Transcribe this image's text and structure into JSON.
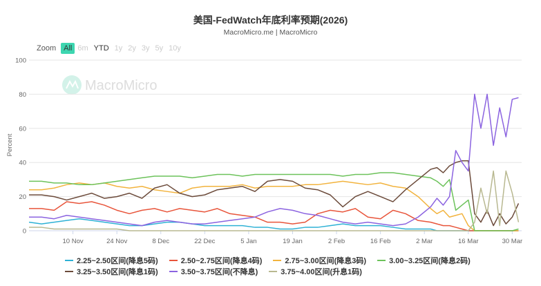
{
  "title": "美国-FedWatch年底利率预期(2026)",
  "subtitle": "MacroMicro.me | MacroMicro",
  "watermark": "MacroMicro",
  "zoom": {
    "label": "Zoom",
    "options": [
      {
        "label": "All",
        "state": "active"
      },
      {
        "label": "6m",
        "state": "disabled"
      },
      {
        "label": "YTD",
        "state": "enabled"
      },
      {
        "label": "1y",
        "state": "disabled"
      },
      {
        "label": "2y",
        "state": "disabled"
      },
      {
        "label": "3y",
        "state": "disabled"
      },
      {
        "label": "5y",
        "state": "disabled"
      },
      {
        "label": "10y",
        "state": "disabled"
      }
    ]
  },
  "chart_data": {
    "type": "line",
    "title": "美国-FedWatch年底利率预期(2026)",
    "ylabel": "Percent",
    "xlabel": "",
    "ylim": [
      0,
      100
    ],
    "yticks": [
      0,
      20,
      40,
      60,
      80,
      100
    ],
    "x_unit": "days since 27 Oct",
    "xlim": [
      0,
      157
    ],
    "xticks": [
      {
        "day": 14,
        "label": "10 Nov"
      },
      {
        "day": 28,
        "label": "24 Nov"
      },
      {
        "day": 42,
        "label": "8 Dec"
      },
      {
        "day": 56,
        "label": "22 Dec"
      },
      {
        "day": 70,
        "label": "5 Jan"
      },
      {
        "day": 84,
        "label": "19 Jan"
      },
      {
        "day": 98,
        "label": "2 Feb"
      },
      {
        "day": 112,
        "label": "16 Feb"
      },
      {
        "day": 126,
        "label": "2 Mar"
      },
      {
        "day": 140,
        "label": "16 Mar"
      },
      {
        "day": 154,
        "label": "30 Mar"
      }
    ],
    "grid": true,
    "legend": "bottom",
    "x": [
      0,
      4,
      8,
      12,
      16,
      20,
      24,
      28,
      32,
      36,
      40,
      44,
      48,
      52,
      56,
      60,
      64,
      68,
      72,
      76,
      80,
      84,
      88,
      92,
      96,
      100,
      104,
      108,
      112,
      116,
      120,
      124,
      128,
      130,
      132,
      134,
      136,
      138,
      140,
      142,
      144,
      146,
      148,
      150,
      152,
      154,
      156
    ],
    "series": [
      {
        "name": "2.25~2.50区间(降息5码)",
        "color": "#2db1d5",
        "values": [
          5,
          4,
          5,
          6,
          7,
          6,
          5,
          4,
          3,
          3,
          4,
          5,
          5,
          4,
          3,
          3,
          3,
          3,
          2,
          2,
          1,
          1,
          2,
          2,
          3,
          4,
          3,
          3,
          3,
          2,
          1,
          1,
          1,
          0,
          0,
          0,
          0,
          0,
          0,
          0,
          0,
          0,
          0,
          0,
          0,
          0,
          0
        ]
      },
      {
        "name": "2.50~2.75区间(降息4码)",
        "color": "#e8543a",
        "values": [
          13,
          13,
          12,
          17,
          16,
          17,
          15,
          12,
          10,
          12,
          13,
          11,
          13,
          12,
          11,
          13,
          10,
          9,
          8,
          5,
          5,
          4,
          5,
          10,
          12,
          11,
          13,
          8,
          7,
          12,
          10,
          6,
          5,
          4,
          3,
          3,
          2,
          1,
          0,
          0,
          0,
          0,
          0,
          0,
          0,
          0,
          0
        ]
      },
      {
        "name": "2.75~3.00区间(降息3码)",
        "color": "#f2b33d",
        "values": [
          24,
          24,
          25,
          27,
          28,
          27,
          28,
          26,
          25,
          26,
          24,
          23,
          22,
          25,
          26,
          26,
          26,
          27,
          25,
          26,
          26,
          26,
          27,
          27,
          28,
          29,
          28,
          27,
          28,
          26,
          25,
          20,
          13,
          10,
          12,
          8,
          9,
          10,
          3,
          0,
          0,
          0,
          0,
          0,
          0,
          0,
          0
        ]
      },
      {
        "name": "3.00~3.25区间(降息2码)",
        "color": "#6cc25a",
        "values": [
          29,
          29,
          28,
          28,
          27,
          27,
          28,
          29,
          30,
          31,
          32,
          32,
          32,
          31,
          32,
          33,
          33,
          32,
          33,
          33,
          33,
          33,
          33,
          33,
          33,
          32,
          33,
          33,
          34,
          34,
          33,
          32,
          31,
          29,
          26,
          30,
          12,
          15,
          18,
          0,
          0,
          0,
          0,
          0,
          0,
          0,
          1
        ]
      },
      {
        "name": "3.25~3.50区间(降息1码)",
        "color": "#6b4a3a",
        "values": [
          21,
          21,
          20,
          18,
          20,
          22,
          19,
          20,
          22,
          19,
          25,
          27,
          22,
          20,
          21,
          24,
          25,
          26,
          23,
          29,
          30,
          29,
          25,
          24,
          21,
          14,
          20,
          23,
          20,
          17,
          24,
          30,
          36,
          37,
          34,
          38,
          40,
          41,
          41,
          10,
          5,
          12,
          3,
          10,
          4,
          8,
          16
        ]
      },
      {
        "name": "3.50~3.75区间(不降息)",
        "color": "#8b63e0",
        "values": [
          8,
          8,
          7,
          9,
          8,
          7,
          6,
          5,
          4,
          3,
          5,
          6,
          5,
          4,
          4,
          5,
          6,
          7,
          8,
          11,
          13,
          12,
          10,
          9,
          7,
          5,
          4,
          5,
          4,
          3,
          4,
          8,
          14,
          19,
          15,
          20,
          47,
          40,
          35,
          80,
          60,
          80,
          50,
          72,
          55,
          77,
          78
        ]
      },
      {
        "name": "3.75~4.00区间(升息1码)",
        "color": "#b8b890",
        "values": [
          2,
          2,
          1,
          1,
          1,
          1,
          1,
          1,
          0,
          0,
          0,
          0,
          0,
          0,
          0,
          0,
          0,
          0,
          0,
          0,
          0,
          0,
          0,
          0,
          0,
          0,
          0,
          0,
          0,
          0,
          0,
          0,
          0,
          0,
          0,
          0,
          0,
          0,
          0,
          5,
          25,
          10,
          35,
          3,
          35,
          22,
          5
        ]
      }
    ]
  }
}
